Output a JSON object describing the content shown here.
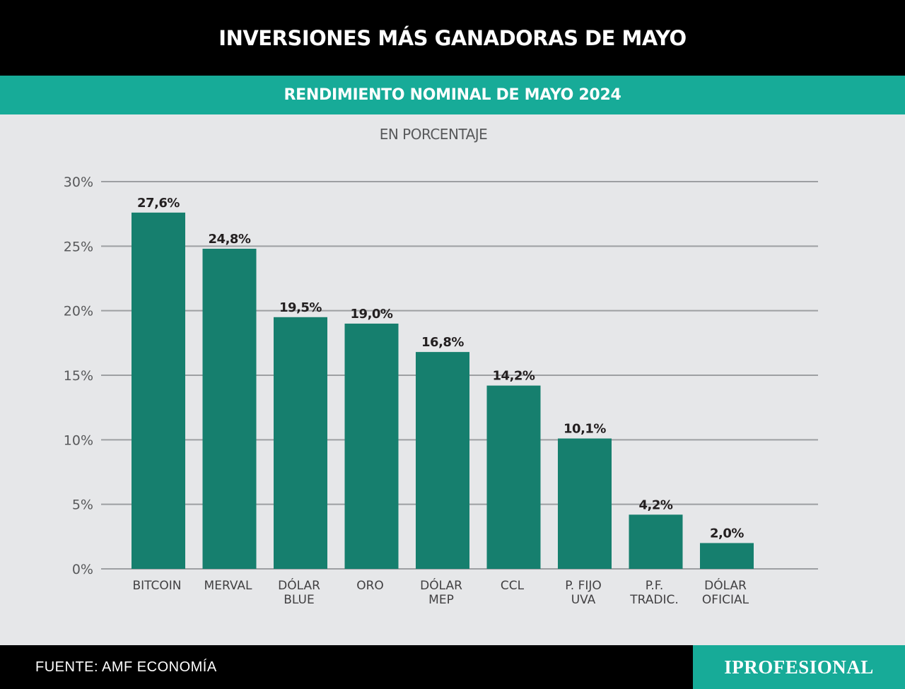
{
  "header": {
    "title": "INVERSIONES MÁS GANADORAS DE MAYO",
    "subtitle": "RENDIMIENTO NOMINAL DE MAYO 2024",
    "unit_label": "EN PORCENTAJE"
  },
  "footer": {
    "source": "FUENTE: AMF ECONOMÍA",
    "logo": "IPROFESIONAL"
  },
  "colors": {
    "bar": "#167f6e",
    "accent": "#17ab98",
    "gridline": "#9d9fa2",
    "background": "#e6e7e9"
  },
  "chart_data": {
    "type": "bar",
    "title": "INVERSIONES MÁS GANADORAS DE MAYO",
    "subtitle": "RENDIMIENTO NOMINAL DE MAYO 2024",
    "ylabel": "EN PORCENTAJE",
    "xlabel": "",
    "ylim": [
      0,
      30
    ],
    "yticks": [
      0,
      5,
      10,
      15,
      20,
      25,
      30
    ],
    "ytick_labels": [
      "0%",
      "5%",
      "10%",
      "15%",
      "20%",
      "25%",
      "30%"
    ],
    "grid": true,
    "categories": [
      [
        "BITCOIN"
      ],
      [
        "MERVAL"
      ],
      [
        "DÓLAR",
        "BLUE"
      ],
      [
        "ORO"
      ],
      [
        "DÓLAR",
        "MEP"
      ],
      [
        "CCL"
      ],
      [
        "P. FIJO",
        "UVA"
      ],
      [
        "P.F.",
        "TRADIC."
      ],
      [
        "DÓLAR",
        "OFICIAL"
      ]
    ],
    "values": [
      27.6,
      24.8,
      19.5,
      19.0,
      16.8,
      14.2,
      10.1,
      4.2,
      2.0
    ],
    "value_labels": [
      "27,6%",
      "24,8%",
      "19,5%",
      "19,0%",
      "16,8%",
      "14,2%",
      "10,1%",
      "4,2%",
      "2,0%"
    ]
  }
}
